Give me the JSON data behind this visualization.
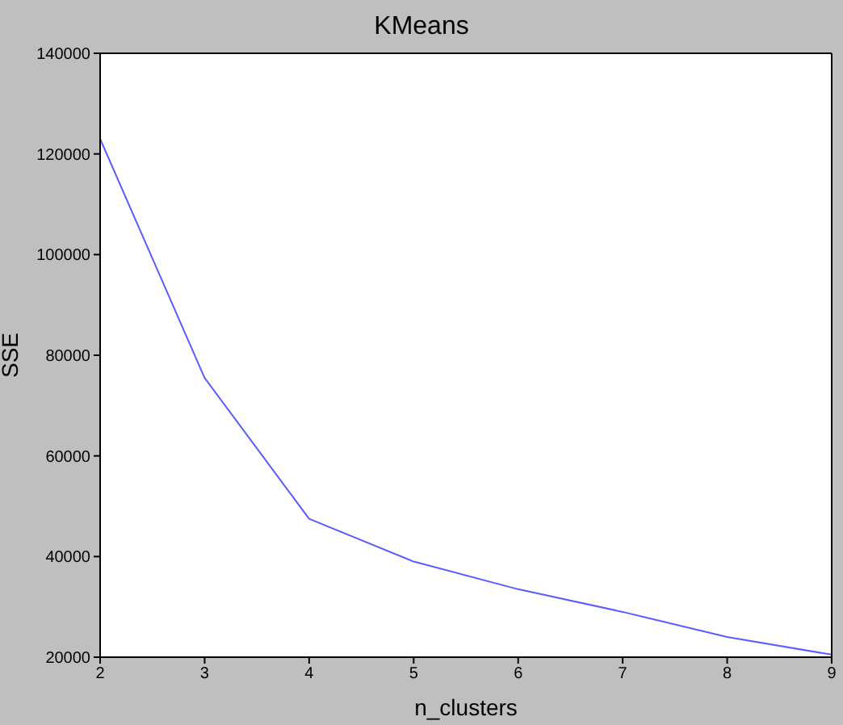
{
  "chart_data": {
    "type": "line",
    "title": "KMeans",
    "xlabel": "n_clusters",
    "ylabel": "SSE",
    "x": [
      2,
      3,
      4,
      5,
      6,
      7,
      8,
      9
    ],
    "series": [
      {
        "color": "#5b5bff",
        "values": [
          123000,
          75500,
          47500,
          39000,
          33500,
          29000,
          24000,
          20500
        ]
      }
    ],
    "xlim": [
      2,
      9
    ],
    "xticks": [
      2,
      3,
      4,
      5,
      6,
      7,
      8,
      9
    ],
    "ylim": [
      20000,
      140000
    ],
    "yticks": [
      20000,
      40000,
      60000,
      80000,
      100000,
      120000,
      140000
    ],
    "grid": false,
    "legend": false
  }
}
